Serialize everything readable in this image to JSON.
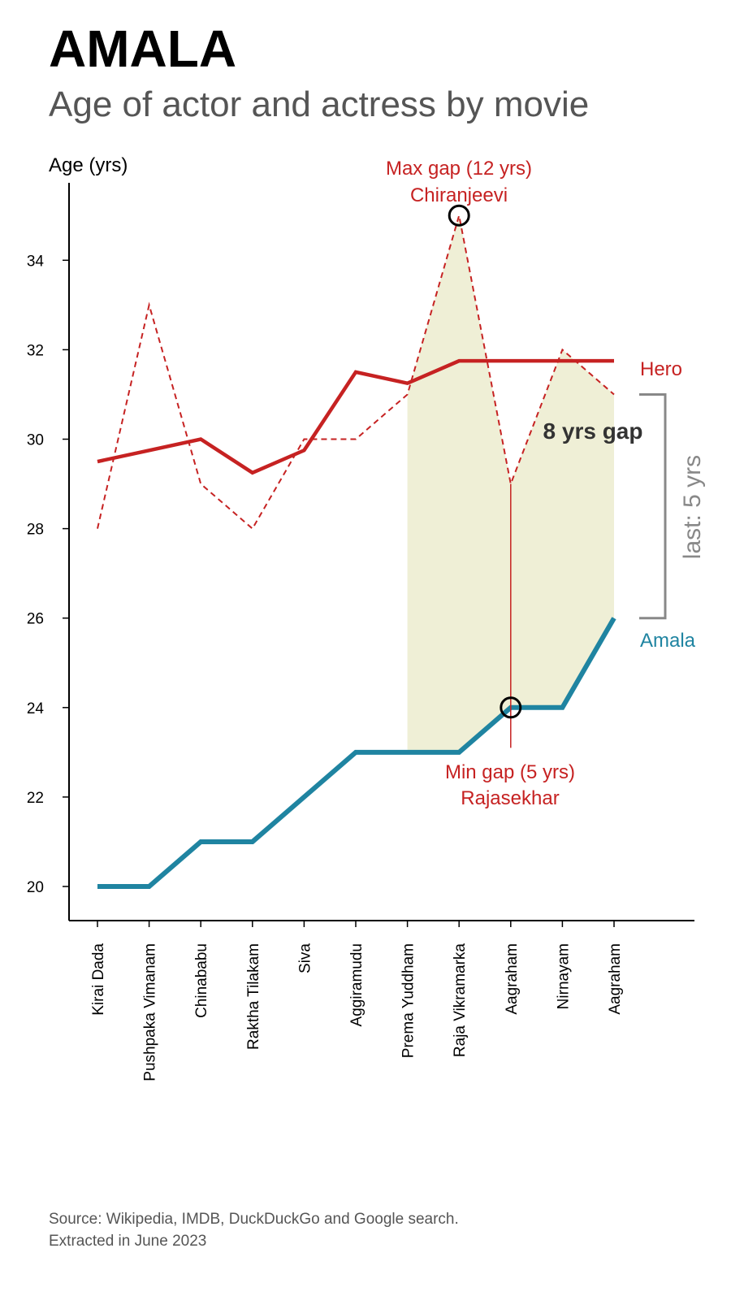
{
  "title": "AMALA",
  "subtitle": "Age of actor and actress by movie",
  "source_line1": "Source: Wikipedia, IMDB, DuckDuckGo and Google search.",
  "source_line2": "Extracted in June 2023",
  "chart_data": {
    "type": "line",
    "ylabel": "Age (yrs)",
    "ylim": [
      19.2,
      35.9
    ],
    "yticks": [
      20,
      22,
      24,
      26,
      28,
      30,
      32,
      34
    ],
    "categories": [
      "Kirai Dada",
      "Pushpaka Vimanam",
      "Chinababu",
      "Raktha Tilakam",
      "Siva",
      "Aggiramudu",
      "Prema Yuddham",
      "Raja Vikramarka",
      "Aagraham",
      "Nirnayam",
      "Aagraham"
    ],
    "series": [
      {
        "name": "Hero",
        "style": "smoothed",
        "color": "#c62222",
        "values": [
          29.5,
          29.75,
          30.0,
          29.25,
          29.75,
          31.5,
          31.25,
          31.75,
          31.75,
          31.75,
          31.75
        ]
      },
      {
        "name": "",
        "style": "dashed",
        "color": "#c62222",
        "values": [
          28,
          33,
          29,
          28,
          30,
          30,
          31,
          35,
          29,
          32,
          31
        ]
      },
      {
        "name": "Amala",
        "style": "solid",
        "color": "#1f84a1",
        "values": [
          20,
          20,
          21,
          21,
          22,
          23,
          23,
          23,
          24,
          24,
          26
        ]
      }
    ],
    "shaded_range": {
      "from_index": 6,
      "to_index": 10,
      "color": "#efefd6"
    },
    "annotations": {
      "max_gap_line1": "Max gap (12 yrs)",
      "max_gap_line2": "Chiranjeevi",
      "max_gap_point": {
        "index": 7,
        "value": 35
      },
      "min_gap_line1": "Min gap (5 yrs)",
      "min_gap_line2": "Rajasekhar",
      "min_gap_point": {
        "index": 8,
        "value": 24
      },
      "min_gap_top_value": 29,
      "min_gap_bottom_value": 23.1,
      "gap_text": "8 yrs gap",
      "last_text": "last: 5 yrs",
      "last_bracket_from": 26,
      "last_bracket_to": 31,
      "annotation_color": "#c62222",
      "bracket_color": "#888888"
    }
  }
}
